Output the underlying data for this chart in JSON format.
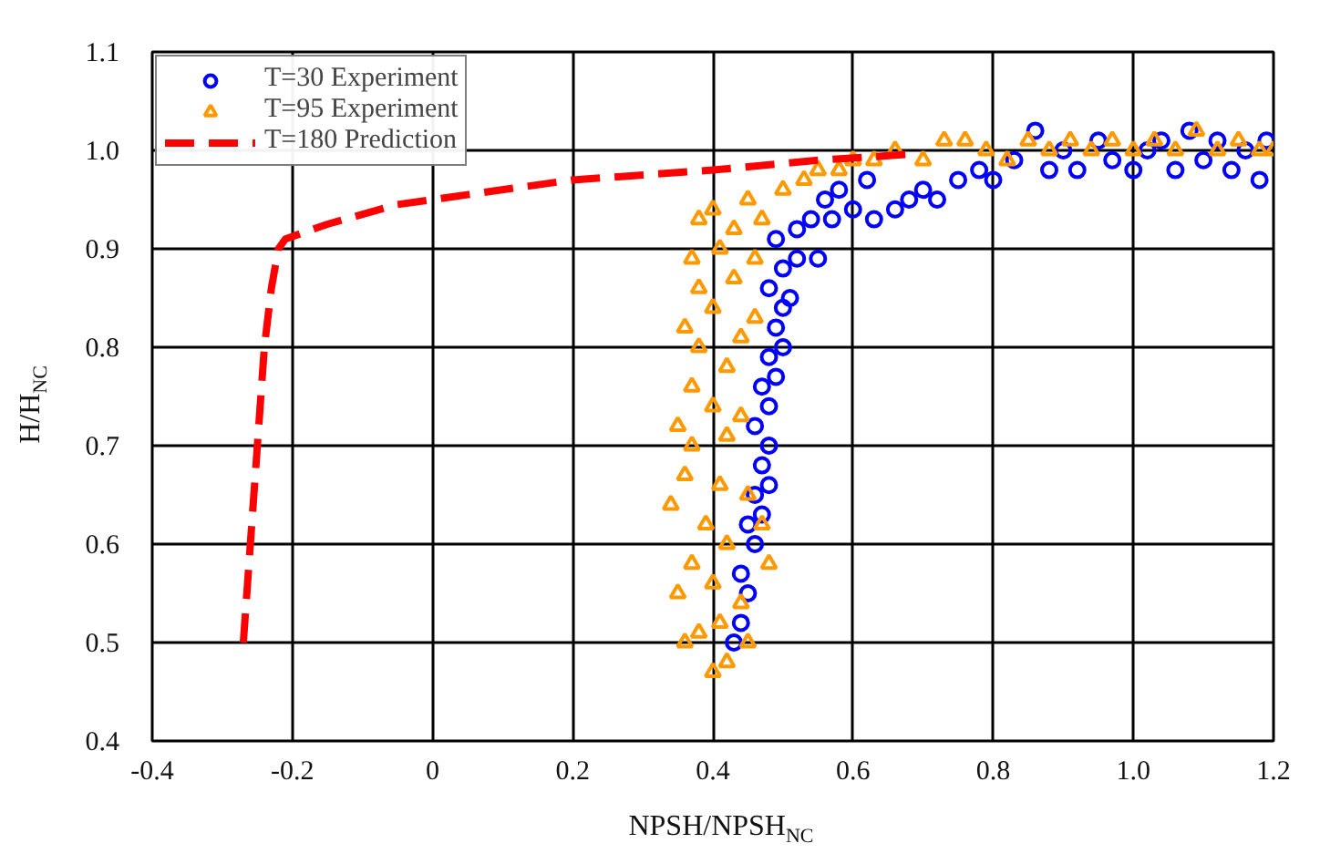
{
  "chart_data": {
    "type": "scatter",
    "xlabel": "NPSH/NPSH$_{NC}$",
    "ylabel": "H/H$_{NC}$",
    "xlim": [
      -0.4,
      1.2
    ],
    "xticks": [
      -0.4,
      -0.2,
      0,
      0.2,
      0.4,
      0.6,
      0.8,
      {
        "value": 1.0,
        "label": "1.0"
      },
      1.2
    ],
    "ylim": [
      0.4,
      1.1
    ],
    "yticks": [
      0.4,
      0.5,
      0.6,
      0.7,
      0.8,
      0.9,
      {
        "value": 1.0,
        "label": "1.0"
      },
      1.1
    ],
    "grid": true,
    "legend": "top left",
    "series": [
      {
        "name": "T=30 Experiment",
        "type": "scatter",
        "marker": "circle",
        "color": "#0000ff",
        "x": [
          0.43,
          0.44,
          0.45,
          0.44,
          0.46,
          0.45,
          0.47,
          0.46,
          0.48,
          0.47,
          0.48,
          0.46,
          0.48,
          0.47,
          0.49,
          0.48,
          0.5,
          0.49,
          0.5,
          0.48,
          0.51,
          0.5,
          0.52,
          0.55,
          0.49,
          0.52,
          0.54,
          0.57,
          0.6,
          0.63,
          0.66,
          0.68,
          0.7,
          0.72,
          0.75,
          0.78,
          0.8,
          0.83,
          0.86,
          0.88,
          0.9,
          0.92,
          0.95,
          0.97,
          1.0,
          1.02,
          1.04,
          1.06,
          1.08,
          1.1,
          1.12,
          1.14,
          1.16,
          1.18,
          1.19,
          0.58,
          0.62,
          0.56
        ],
        "values": [
          0.5,
          0.52,
          0.55,
          0.57,
          0.6,
          0.62,
          0.63,
          0.65,
          0.66,
          0.68,
          0.7,
          0.72,
          0.74,
          0.76,
          0.77,
          0.79,
          0.8,
          0.82,
          0.84,
          0.86,
          0.85,
          0.88,
          0.89,
          0.89,
          0.91,
          0.92,
          0.93,
          0.93,
          0.94,
          0.93,
          0.94,
          0.95,
          0.96,
          0.95,
          0.97,
          0.98,
          0.97,
          0.99,
          1.02,
          0.98,
          1.0,
          0.98,
          1.01,
          0.99,
          0.98,
          1.0,
          1.01,
          0.98,
          1.02,
          0.99,
          1.01,
          0.98,
          1.0,
          0.97,
          1.01,
          0.96,
          0.97,
          0.95
        ]
      },
      {
        "name": "T=95 Experiment",
        "type": "scatter",
        "marker": "triangle",
        "color": "#ff9900",
        "x": [
          0.4,
          0.42,
          0.36,
          0.38,
          0.41,
          0.45,
          0.35,
          0.4,
          0.44,
          0.37,
          0.42,
          0.34,
          0.39,
          0.47,
          0.48,
          0.36,
          0.41,
          0.45,
          0.37,
          0.42,
          0.35,
          0.4,
          0.44,
          0.37,
          0.42,
          0.38,
          0.44,
          0.36,
          0.4,
          0.46,
          0.38,
          0.43,
          0.37,
          0.41,
          0.46,
          0.38,
          0.43,
          0.47,
          0.4,
          0.45,
          0.5,
          0.53,
          0.55,
          0.58,
          0.6,
          0.63,
          0.66,
          0.7,
          0.73,
          0.76,
          0.79,
          0.82,
          0.85,
          0.88,
          0.91,
          0.94,
          0.97,
          1.0,
          1.03,
          1.06,
          1.09,
          1.12,
          1.15,
          1.18,
          1.2
        ],
        "values": [
          0.47,
          0.48,
          0.5,
          0.51,
          0.52,
          0.5,
          0.55,
          0.56,
          0.54,
          0.58,
          0.6,
          0.64,
          0.62,
          0.62,
          0.58,
          0.67,
          0.66,
          0.65,
          0.7,
          0.71,
          0.72,
          0.74,
          0.73,
          0.76,
          0.78,
          0.8,
          0.81,
          0.82,
          0.84,
          0.83,
          0.86,
          0.87,
          0.89,
          0.9,
          0.89,
          0.93,
          0.92,
          0.93,
          0.94,
          0.95,
          0.96,
          0.97,
          0.98,
          0.98,
          0.99,
          0.99,
          1.0,
          0.99,
          1.01,
          1.01,
          1.0,
          0.99,
          1.01,
          1.0,
          1.01,
          1.0,
          1.01,
          1.0,
          1.01,
          1.0,
          1.02,
          1.0,
          1.01,
          1.0,
          1.0
        ]
      },
      {
        "name": "T=180 Prediction",
        "type": "line",
        "line_style": "dashed",
        "color": "#ff0000",
        "x": [
          -0.27,
          -0.26,
          -0.25,
          -0.24,
          -0.23,
          -0.22,
          -0.21,
          -0.15,
          -0.05,
          0.05,
          0.2,
          0.4,
          0.55,
          0.68
        ],
        "values": [
          0.5,
          0.6,
          0.7,
          0.8,
          0.86,
          0.9,
          0.91,
          0.925,
          0.945,
          0.955,
          0.97,
          0.98,
          0.99,
          0.996
        ]
      }
    ]
  }
}
